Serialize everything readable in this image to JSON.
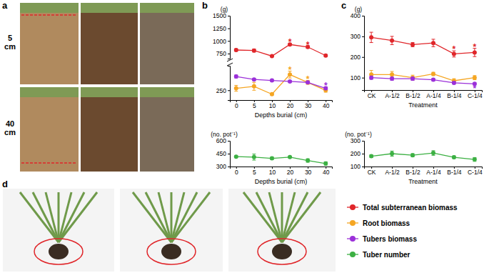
{
  "figure": {
    "panel_labels": [
      "a",
      "b",
      "c",
      "d"
    ],
    "row_labels": [
      "5 cm",
      "40 cm"
    ]
  },
  "chart_data": [
    {
      "type": "line",
      "y_label": "(g)",
      "categories": [
        "0",
        "5",
        "10",
        "20",
        "30",
        "40"
      ],
      "ylim": [
        650,
        1500
      ],
      "yticks": [
        750,
        1000,
        1250,
        1500
      ],
      "tick_labels": "y",
      "series": [
        {
          "name": "Total subterranean biomass",
          "color": "#e0262a",
          "marker": "circle",
          "values": [
            820,
            810,
            700,
            930,
            880,
            710
          ],
          "errors": [
            25,
            30,
            15,
            20,
            25,
            20
          ]
        }
      ],
      "annotations": [
        {
          "text": "*",
          "x": "20",
          "y": 985,
          "color": "#e0262a"
        },
        {
          "text": "*",
          "x": "30",
          "y": 940,
          "color": "#e0262a"
        }
      ]
    },
    {
      "type": "line",
      "x_label": "Depths burial (cm)",
      "categories": [
        "0",
        "5",
        "10",
        "20",
        "30",
        "40"
      ],
      "ylim": [
        150,
        500
      ],
      "yticks": [
        250
      ],
      "series": [
        {
          "name": "Root biomass",
          "color": "#f5a623",
          "marker": "circle",
          "values": [
            270,
            290,
            210,
            410,
            330,
            250
          ],
          "errors": [
            30,
            40,
            10,
            35,
            20,
            20
          ]
        },
        {
          "name": "Tubers biomass",
          "color": "#9b30d9",
          "marker": "circle",
          "values": [
            390,
            360,
            350,
            340,
            330,
            270
          ],
          "errors": [
            15,
            10,
            10,
            10,
            10,
            15
          ]
        }
      ],
      "annotations": [
        {
          "text": "*",
          "x": "20",
          "y": 460,
          "color": "#f5a623"
        },
        {
          "text": "*",
          "x": "30",
          "y": 370,
          "color": "#f5a623"
        },
        {
          "text": "*",
          "x": "40",
          "y": 300,
          "color": "#9b30d9"
        }
      ]
    },
    {
      "type": "line",
      "x_label": "Depths burial (cm)",
      "y_label": "(no. pot⁻¹)",
      "categories": [
        "0",
        "5",
        "10",
        "20",
        "30",
        "40"
      ],
      "ylim": [
        300,
        600
      ],
      "yticks": [
        300,
        450,
        600
      ],
      "series": [
        {
          "name": "Tuber number",
          "color": "#3cb043",
          "marker": "circle",
          "values": [
            415,
            410,
            395,
            410,
            370,
            335
          ],
          "errors": [
            8,
            35,
            15,
            8,
            20,
            20
          ]
        }
      ]
    },
    {
      "type": "line",
      "x_label": "Treatment",
      "y_label": "(g)",
      "categories": [
        "CK",
        "A-1/2",
        "B-1/2",
        "A-1/4",
        "B-1/4",
        "C-1/4"
      ],
      "ylim": [
        40,
        400
      ],
      "yticks": [
        100,
        200,
        300,
        400
      ],
      "series": [
        {
          "name": "Total subterranean biomass",
          "color": "#e0262a",
          "marker": "circle",
          "values": [
            295,
            280,
            260,
            268,
            215,
            222
          ],
          "errors": [
            25,
            20,
            10,
            18,
            15,
            20
          ]
        },
        {
          "name": "Root biomass",
          "color": "#f5a623",
          "marker": "circle",
          "values": [
            115,
            115,
            100,
            118,
            85,
            100
          ],
          "errors": [
            20,
            15,
            12,
            8,
            10,
            10
          ]
        },
        {
          "name": "Tubers biomass",
          "color": "#9b30d9",
          "marker": "circle",
          "values": [
            100,
            95,
            95,
            90,
            75,
            70
          ],
          "errors": [
            8,
            8,
            8,
            6,
            6,
            5
          ]
        }
      ],
      "annotations": [
        {
          "text": "*",
          "x": "B-1/4",
          "y": 240,
          "color": "#e0262a"
        },
        {
          "text": "*",
          "x": "C-1/4",
          "y": 250,
          "color": "#e0262a"
        },
        {
          "text": "*",
          "x": "C-1/4",
          "y": 50,
          "color": "#9b30d9"
        }
      ]
    },
    {
      "type": "line",
      "x_label": "Treatment",
      "y_label": "(no. pot⁻¹)",
      "categories": [
        "CK",
        "A-1/2",
        "B-1/2",
        "A-1/4",
        "B-1/4",
        "C-1/4"
      ],
      "ylim": [
        100,
        300
      ],
      "yticks": [
        100,
        200,
        300
      ],
      "series": [
        {
          "name": "Tuber number",
          "color": "#3cb043",
          "marker": "circle",
          "values": [
            180,
            200,
            188,
            205,
            172,
            155
          ],
          "errors": [
            10,
            20,
            12,
            18,
            10,
            15
          ]
        }
      ]
    }
  ]
}
